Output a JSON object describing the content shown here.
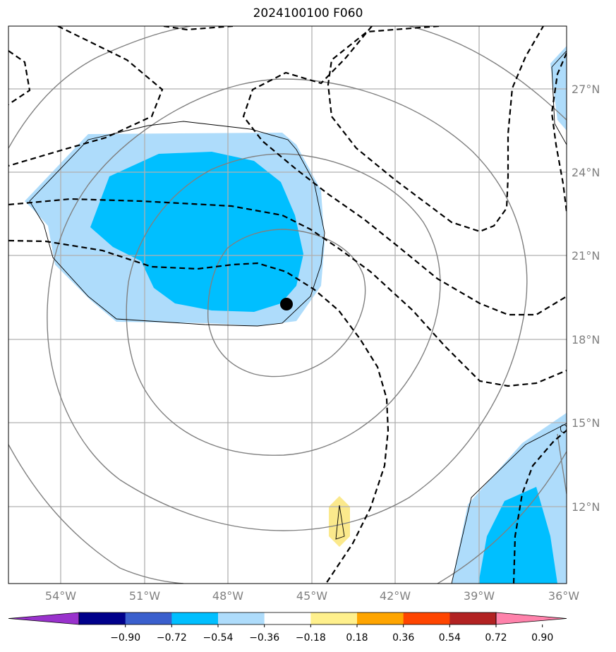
{
  "title": "2024100100 F060",
  "lat_labels": [
    "27°N",
    "24°N",
    "21°N",
    "18°N",
    "15°N",
    "12°N"
  ],
  "lon_labels": [
    "54°W",
    "51°W",
    "48°W",
    "45°W",
    "42°W",
    "39°W",
    "36°W"
  ],
  "colorbar": {
    "ticks": [
      "−0.90",
      "−0.72",
      "−0.54",
      "−0.36",
      "−0.18",
      "0.18",
      "0.36",
      "0.54",
      "0.72",
      "0.90"
    ],
    "colors": [
      "#9932cc",
      "#00008b",
      "#3a5fcd",
      "#00bfff",
      "#aedcfb",
      "#ffffff",
      "#fff08c",
      "#ffa500",
      "#ff4500",
      "#b22222",
      "#ff82ab"
    ]
  },
  "colors": {
    "light_blue": "#aedcfb",
    "deep_sky_blue": "#00bfff",
    "yellow": "#fbe98c",
    "grid": "#b0b0b0",
    "contour_gray": "#808080"
  },
  "storm_marker": "center-dot"
}
